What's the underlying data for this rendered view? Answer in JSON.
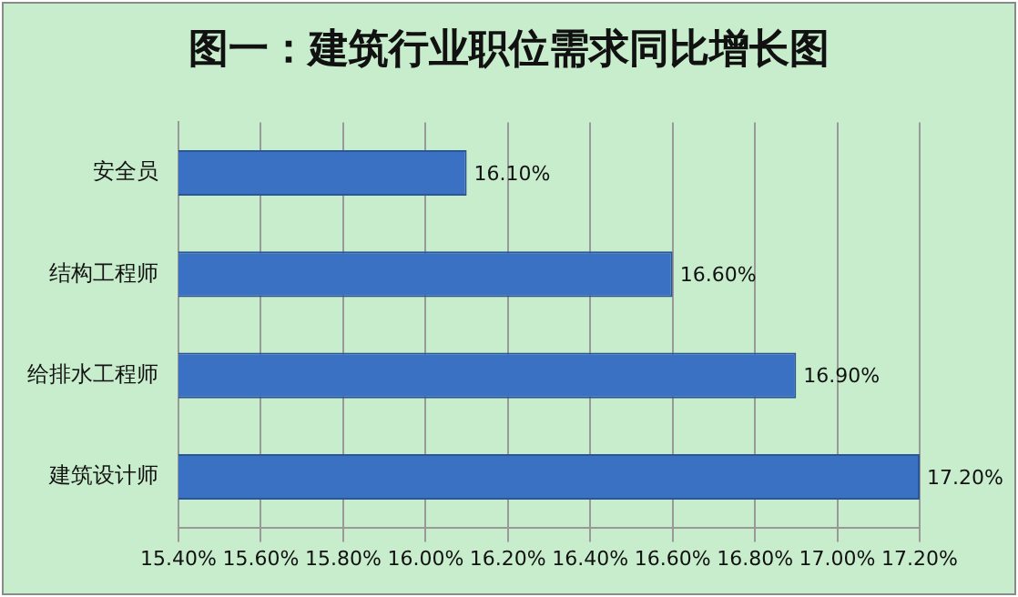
{
  "chart_data": {
    "type": "bar",
    "title": "图一：建筑行业职位需求同比增长图",
    "orientation": "horizontal",
    "categories": [
      "安全员",
      "结构工程师",
      "给排水工程师",
      "建筑设计师"
    ],
    "values": [
      16.1,
      16.6,
      16.9,
      17.2
    ],
    "color": "#3b71c2",
    "value_labels": [
      "16.10%",
      "16.60%",
      "16.90%",
      "17.20%"
    ],
    "xlim": [
      15.4,
      17.2
    ],
    "xticks": [
      {
        "value": 15.4,
        "label": "15.40%"
      },
      {
        "value": 15.6,
        "label": "15.60%"
      },
      {
        "value": 15.8,
        "label": "15.80%"
      },
      {
        "value": 16.0,
        "label": "16.00%"
      },
      {
        "value": 16.2,
        "label": "16.20%"
      },
      {
        "value": 16.4,
        "label": "16.40%"
      },
      {
        "value": 16.6,
        "label": "16.60%"
      },
      {
        "value": 16.8,
        "label": "16.80%"
      },
      {
        "value": 17.0,
        "label": "17.00%"
      },
      {
        "value": 17.2,
        "label": "17.20%"
      }
    ],
    "grid": "x",
    "legend": false
  }
}
